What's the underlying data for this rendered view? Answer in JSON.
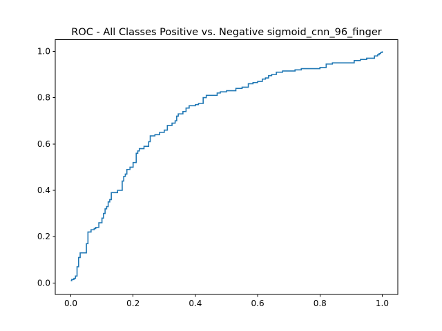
{
  "chart_data": {
    "type": "line",
    "title": "ROC - All Classes Positive vs. Negative sigmoid_cnn_96_finger",
    "xlabel": "",
    "ylabel": "",
    "xlim": [
      -0.05,
      1.05
    ],
    "ylim": [
      -0.05,
      1.05
    ],
    "grid": false,
    "legend": "none",
    "xticks": [
      0.0,
      0.2,
      0.4,
      0.6,
      0.8,
      1.0
    ],
    "xtick_labels": [
      "0.0",
      "0.2",
      "0.4",
      "0.6",
      "0.8",
      "1.0"
    ],
    "yticks": [
      0.0,
      0.2,
      0.4,
      0.6,
      0.8,
      1.0
    ],
    "ytick_labels": [
      "0.0",
      "0.2",
      "0.4",
      "0.6",
      "0.8",
      "1.0"
    ],
    "series": [
      {
        "color": "#1f77b4",
        "step": true,
        "x": [
          0.0,
          0.003,
          0.01,
          0.015,
          0.02,
          0.025,
          0.03,
          0.04,
          0.05,
          0.055,
          0.065,
          0.075,
          0.08,
          0.09,
          0.1,
          0.105,
          0.11,
          0.115,
          0.12,
          0.125,
          0.13,
          0.15,
          0.16,
          0.165,
          0.17,
          0.175,
          0.18,
          0.19,
          0.2,
          0.21,
          0.215,
          0.22,
          0.235,
          0.25,
          0.255,
          0.27,
          0.285,
          0.3,
          0.31,
          0.325,
          0.335,
          0.34,
          0.345,
          0.36,
          0.37,
          0.38,
          0.4,
          0.41,
          0.425,
          0.435,
          0.45,
          0.47,
          0.48,
          0.5,
          0.53,
          0.55,
          0.57,
          0.585,
          0.6,
          0.615,
          0.625,
          0.635,
          0.645,
          0.66,
          0.68,
          0.7,
          0.72,
          0.74,
          0.76,
          0.77,
          0.8,
          0.82,
          0.84,
          0.88,
          0.91,
          0.93,
          0.95,
          0.96,
          0.975,
          0.985,
          0.99,
          0.995,
          1.0
        ],
        "y": [
          0.01,
          0.015,
          0.02,
          0.03,
          0.07,
          0.11,
          0.13,
          0.13,
          0.17,
          0.22,
          0.23,
          0.235,
          0.24,
          0.26,
          0.28,
          0.3,
          0.32,
          0.33,
          0.35,
          0.36,
          0.39,
          0.4,
          0.4,
          0.44,
          0.46,
          0.47,
          0.49,
          0.5,
          0.52,
          0.56,
          0.57,
          0.58,
          0.59,
          0.61,
          0.635,
          0.64,
          0.65,
          0.66,
          0.68,
          0.69,
          0.7,
          0.72,
          0.73,
          0.74,
          0.755,
          0.765,
          0.77,
          0.775,
          0.8,
          0.81,
          0.81,
          0.82,
          0.825,
          0.83,
          0.84,
          0.845,
          0.86,
          0.865,
          0.87,
          0.88,
          0.885,
          0.895,
          0.9,
          0.91,
          0.915,
          0.915,
          0.92,
          0.925,
          0.925,
          0.925,
          0.93,
          0.945,
          0.95,
          0.95,
          0.96,
          0.965,
          0.97,
          0.97,
          0.98,
          0.985,
          0.99,
          0.995,
          1.0
        ]
      }
    ]
  }
}
